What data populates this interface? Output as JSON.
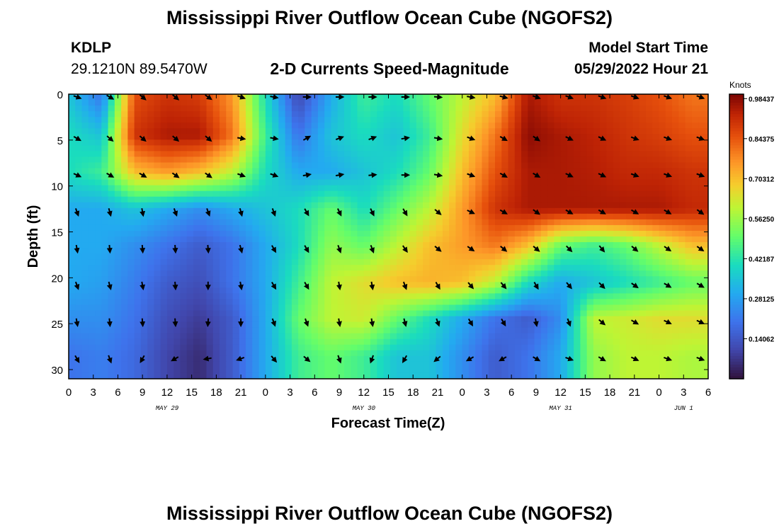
{
  "header": {
    "title": "Mississippi River Outflow Ocean Cube (NGOFS2)",
    "station_id": "KDLP",
    "station_coords": "29.1210N  89.5470W",
    "subtitle": "2-D Currents Speed-Magnitude",
    "model_start_label": "Model Start Time",
    "model_start_value": "05/29/2022 Hour 21"
  },
  "footer": {
    "title": "Mississippi River Outflow Ocean Cube (NGOFS2)"
  },
  "chart_data": {
    "type": "heatmap",
    "xlabel": "Forecast Time(Z)",
    "ylabel": "Depth (ft)",
    "colorbar_label": "Knots",
    "colorbar_ticks": [
      "0.98437",
      "0.84375",
      "0.70312",
      "0.56250",
      "0.42187",
      "0.28125",
      "0.14062"
    ],
    "colorbar_range": [
      0,
      1.0
    ],
    "xlim": [
      0,
      78
    ],
    "ylim": [
      31,
      0
    ],
    "x_tick_labels": [
      "0",
      "3",
      "6",
      "9",
      "12",
      "15",
      "18",
      "21",
      "0",
      "3",
      "6",
      "9",
      "12",
      "15",
      "18",
      "21",
      "0",
      "3",
      "6",
      "9",
      "12",
      "15",
      "18",
      "21",
      "0",
      "3",
      "6"
    ],
    "y_tick_labels": [
      "0",
      "5",
      "10",
      "15",
      "20",
      "25",
      "30"
    ],
    "y_ticks": [
      0,
      5,
      10,
      15,
      20,
      25,
      30
    ],
    "date_labels": [
      {
        "hour": 12,
        "text": "MAY 29"
      },
      {
        "hour": 36,
        "text": "MAY 30"
      },
      {
        "hour": 60,
        "text": "MAY 31"
      },
      {
        "hour": 75,
        "text": "JUN 1"
      }
    ],
    "grid_hours": [
      0,
      4,
      8,
      12,
      16,
      20,
      24,
      28,
      32,
      36,
      40,
      44,
      48,
      52,
      56,
      60,
      64,
      68,
      72,
      76
    ],
    "grid_depths": [
      0,
      4.5,
      8.5,
      12.5,
      16.5,
      20.5,
      24.5,
      28.5
    ],
    "speed_grid": [
      [
        0.35,
        0.2,
        0.85,
        0.9,
        0.88,
        0.75,
        0.4,
        0.1,
        0.3,
        0.45,
        0.4,
        0.5,
        0.6,
        0.7,
        0.95,
        0.9,
        0.9,
        0.88,
        0.85,
        0.8
      ],
      [
        0.4,
        0.35,
        0.9,
        0.95,
        0.95,
        0.8,
        0.45,
        0.2,
        0.35,
        0.4,
        0.35,
        0.45,
        0.65,
        0.8,
        0.98,
        0.95,
        0.93,
        0.9,
        0.88,
        0.85
      ],
      [
        0.4,
        0.45,
        0.7,
        0.75,
        0.7,
        0.6,
        0.4,
        0.3,
        0.3,
        0.35,
        0.4,
        0.5,
        0.7,
        0.85,
        0.95,
        0.95,
        0.94,
        0.92,
        0.92,
        0.9
      ],
      [
        0.3,
        0.3,
        0.35,
        0.3,
        0.25,
        0.3,
        0.35,
        0.4,
        0.5,
        0.4,
        0.5,
        0.6,
        0.75,
        0.9,
        0.95,
        0.95,
        0.95,
        0.95,
        0.95,
        0.92
      ],
      [
        0.3,
        0.3,
        0.25,
        0.2,
        0.15,
        0.2,
        0.3,
        0.4,
        0.55,
        0.5,
        0.6,
        0.7,
        0.75,
        0.8,
        0.7,
        0.5,
        0.45,
        0.5,
        0.6,
        0.7
      ],
      [
        0.3,
        0.28,
        0.22,
        0.15,
        0.12,
        0.2,
        0.3,
        0.45,
        0.6,
        0.65,
        0.7,
        0.72,
        0.7,
        0.6,
        0.4,
        0.3,
        0.35,
        0.4,
        0.45,
        0.5
      ],
      [
        0.25,
        0.25,
        0.2,
        0.12,
        0.08,
        0.15,
        0.3,
        0.5,
        0.6,
        0.62,
        0.5,
        0.4,
        0.3,
        0.2,
        0.15,
        0.25,
        0.6,
        0.62,
        0.65,
        0.65
      ],
      [
        0.2,
        0.22,
        0.18,
        0.1,
        0.05,
        0.15,
        0.3,
        0.45,
        0.5,
        0.45,
        0.35,
        0.35,
        0.25,
        0.15,
        0.2,
        0.3,
        0.55,
        0.6,
        0.6,
        0.58
      ]
    ],
    "arrow_hours": [
      1,
      5,
      9,
      13,
      17,
      21,
      25,
      29,
      33,
      37,
      41,
      45,
      49,
      53,
      57,
      61,
      65,
      69,
      73,
      77
    ],
    "arrow_depths": [
      0,
      4.5,
      8.5,
      12.5,
      16.5,
      20.5,
      24.5,
      28.5
    ],
    "arrow_dir_deg": [
      [
        110,
        120,
        130,
        130,
        125,
        110,
        100,
        90,
        90,
        90,
        90,
        95,
        100,
        105,
        110,
        110,
        110,
        110,
        110,
        110
      ],
      [
        120,
        130,
        130,
        130,
        130,
        100,
        100,
        60,
        70,
        70,
        80,
        100,
        110,
        120,
        125,
        115,
        115,
        110,
        110,
        110
      ],
      [
        115,
        120,
        120,
        125,
        125,
        110,
        110,
        80,
        80,
        85,
        90,
        100,
        110,
        120,
        120,
        115,
        115,
        110,
        110,
        110
      ],
      [
        160,
        165,
        170,
        160,
        160,
        165,
        160,
        150,
        155,
        155,
        150,
        130,
        115,
        120,
        125,
        120,
        120,
        120,
        120,
        125
      ],
      [
        170,
        175,
        175,
        175,
        175,
        165,
        150,
        150,
        160,
        160,
        145,
        130,
        125,
        130,
        130,
        135,
        140,
        130,
        125,
        125
      ],
      [
        160,
        165,
        170,
        175,
        180,
        170,
        150,
        150,
        170,
        170,
        160,
        150,
        140,
        140,
        150,
        140,
        135,
        125,
        120,
        120
      ],
      [
        170,
        175,
        175,
        175,
        185,
        180,
        160,
        160,
        170,
        170,
        165,
        160,
        150,
        150,
        170,
        160,
        130,
        120,
        115,
        115
      ],
      [
        150,
        160,
        210,
        240,
        260,
        250,
        140,
        130,
        160,
        200,
        210,
        230,
        240,
        240,
        120,
        110,
        120,
        115,
        110,
        110
      ]
    ]
  }
}
